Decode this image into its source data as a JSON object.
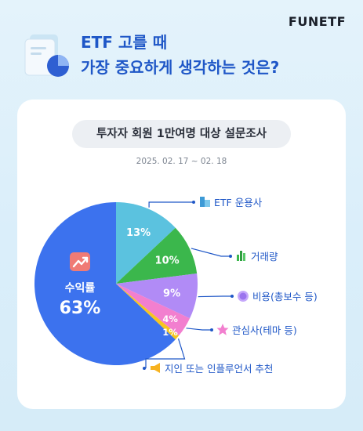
{
  "brand": "FUNETF",
  "headline": {
    "line1": "ETF 고를 때",
    "line2": "가장 중요하게 생각하는 것은?"
  },
  "survey": {
    "title": "투자자 회원 1만여명 대상 설문조사",
    "date_range": "2025. 02. 17 ~ 02. 18"
  },
  "icons": {
    "hero": "document-pie-chart-icon",
    "etf_provider": "building-icon",
    "trading_volume": "bar-chart-icon",
    "cost": "coin-icon",
    "theme": "star-icon",
    "recommendation": "megaphone-icon",
    "returns": "trending-up-icon"
  },
  "colors": {
    "headline": "#1f57c7",
    "returns": "#3c72ee",
    "etf_provider": "#5bc2df",
    "trading_volume": "#3bb74c",
    "cost": "#b18bf6",
    "theme": "#f27fcf",
    "recommendation": "#f7c51f",
    "returns_badge": "#f07b75"
  },
  "chart_data": {
    "type": "pie",
    "title": "ETF 고를 때 가장 중요하게 생각하는 것은?",
    "slices": [
      {
        "label": "ETF 운용사",
        "value": 13,
        "value_label": "13%",
        "color": "#5bc2df",
        "icon": "building-icon"
      },
      {
        "label": "거래량",
        "value": 10,
        "value_label": "10%",
        "color": "#3bb74c",
        "icon": "bar-chart-icon"
      },
      {
        "label": "비용(총보수 등)",
        "value": 9,
        "value_label": "9%",
        "color": "#b18bf6",
        "icon": "coin-icon"
      },
      {
        "label": "관심사(테마 등)",
        "value": 4,
        "value_label": "4%",
        "color": "#f27fcf",
        "icon": "star-icon"
      },
      {
        "label": "지인 또는 인플루언서 추천",
        "value": 1,
        "value_label": "1%",
        "color": "#f7c51f",
        "icon": "megaphone-icon"
      },
      {
        "label": "수익률",
        "value": 63,
        "value_label": "63%",
        "color": "#3c72ee",
        "icon": "trending-up-icon"
      }
    ]
  }
}
